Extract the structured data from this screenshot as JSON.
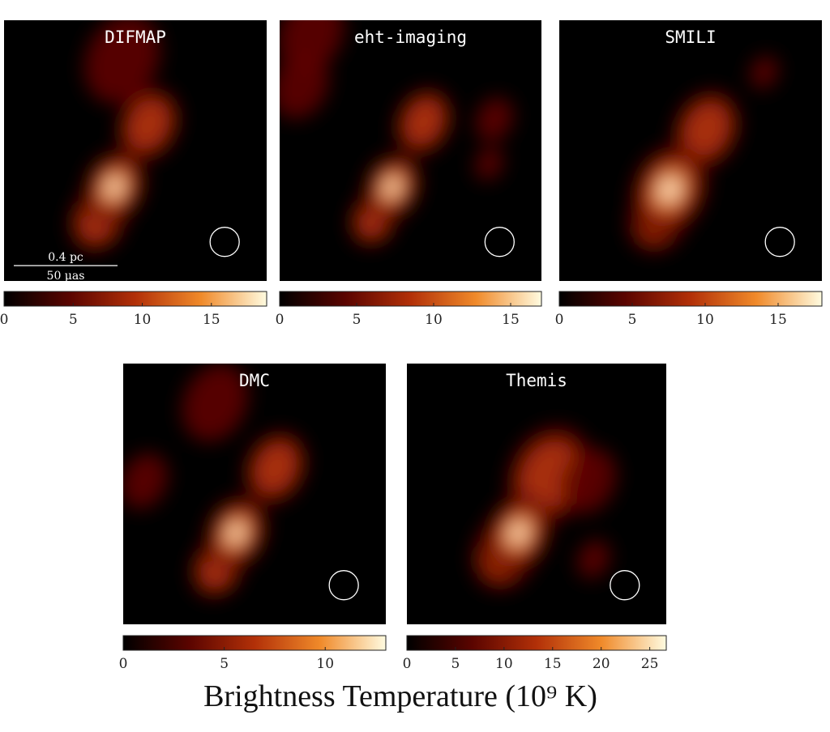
{
  "chart_data": [
    {
      "type": "image",
      "title": "DIFMAP",
      "clim": [
        0,
        19
      ],
      "cticks": [
        0,
        5,
        10,
        15
      ],
      "scale_bar": {
        "top": "0.4 pc",
        "bottom": "50 μas"
      }
    },
    {
      "type": "image",
      "title": "eht-imaging",
      "clim": [
        0,
        17
      ],
      "cticks": [
        0,
        5,
        10,
        15
      ]
    },
    {
      "type": "image",
      "title": "SMILI",
      "clim": [
        0,
        18
      ],
      "cticks": [
        0,
        5,
        10,
        15
      ]
    },
    {
      "type": "image",
      "title": "DMC",
      "clim": [
        0,
        13
      ],
      "cticks": [
        0,
        5,
        10
      ]
    },
    {
      "type": "image",
      "title": "Themis",
      "clim": [
        0,
        26.7
      ],
      "cticks": [
        0,
        5,
        10,
        15,
        20,
        25
      ]
    }
  ],
  "colorbar_label": "Brightness Temperature (10⁹ K)"
}
